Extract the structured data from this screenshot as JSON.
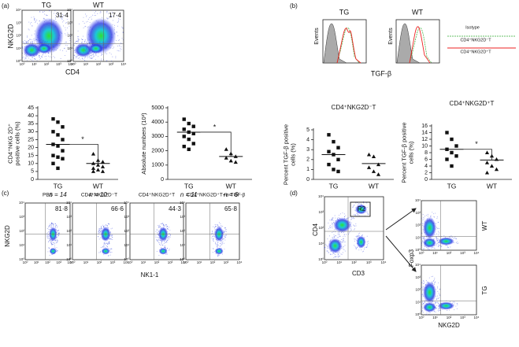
{
  "panels": [
    "(a)",
    "(b)",
    "(c)",
    "(d)"
  ],
  "flow_ticks": [
    "10⁰",
    "10¹",
    "10²",
    "10³",
    "10⁴"
  ],
  "a_flow": {
    "plots": [
      {
        "title": "TG",
        "value": "31·4"
      },
      {
        "title": "WT",
        "value": "17·4"
      }
    ],
    "ylabel": "NKG2D",
    "xlabel": "CD4"
  },
  "b_hist": {
    "plots": [
      "TG",
      "WT"
    ],
    "ylabel": "Events",
    "xlabel": "TGF-β",
    "legend": [
      "Isotype",
      "CD4⁺NKG2D⁻T",
      "CD4⁺NKG2D⁺T"
    ]
  },
  "c_flow": {
    "plots": [
      {
        "title": "PBS",
        "value": "81·8"
      },
      {
        "title": "CD4⁺NKG2D⁻T",
        "value": "66·6"
      },
      {
        "title": "CD4⁺NKG2D⁺T",
        "value": "44·3"
      },
      {
        "title": "CD4⁺NKG2D⁺T+α-TGF-β",
        "value": "65·8"
      }
    ],
    "ylabel": "NKG2D",
    "xlabel": "NK1-1"
  },
  "d_flow": {
    "gate": "R2",
    "ylabel": "CD4",
    "xlabel": "CD3",
    "right_ylabel": "Foxp3",
    "right_xlabel": "NKG2D",
    "sides": [
      "WT",
      "TG"
    ]
  },
  "chart_data": [
    {
      "type": "dot",
      "ylabel": [
        "CD4⁺NKG 2D⁺",
        "positive cells (%)"
      ],
      "categories": [
        "TG",
        "WT"
      ],
      "n_labels": [
        "n = 14",
        "n = 10"
      ],
      "values": [
        [
          38,
          36,
          33,
          30,
          28,
          25,
          22,
          21,
          18,
          15,
          14,
          13,
          10,
          7
        ],
        [
          16,
          12,
          11,
          10,
          9,
          8,
          7,
          6,
          5,
          5
        ]
      ],
      "means": [
        22,
        10
      ],
      "markers": [
        "square",
        "triangle"
      ],
      "significance": "*",
      "ylim": [
        0,
        45
      ],
      "yticks": [
        0,
        5,
        10,
        15,
        20,
        25,
        30,
        35,
        40,
        45
      ]
    },
    {
      "type": "dot",
      "ylabel": [
        "Absolute numbers (10³)"
      ],
      "categories": [
        "TG",
        "WT"
      ],
      "n_labels": [
        "n = 11",
        "n = 6"
      ],
      "values": [
        [
          4200,
          3900,
          3700,
          3500,
          3300,
          3200,
          3000,
          2800,
          2500,
          2300,
          2100
        ],
        [
          2100,
          1800,
          1600,
          1500,
          1300,
          1200
        ]
      ],
      "means": [
        3300,
        1600
      ],
      "markers": [
        "square",
        "triangle"
      ],
      "significance": "*",
      "ylim": [
        0,
        5000
      ],
      "yticks": [
        0,
        1000,
        2000,
        3000,
        4000,
        5000
      ]
    },
    {
      "type": "dot",
      "title": "CD4⁺NKG2D⁻T",
      "ylabel": [
        "Percent TGF-β positive",
        "cells (%)"
      ],
      "categories": [
        "TG",
        "WT"
      ],
      "values": [
        [
          4.5,
          3.8,
          3.2,
          2.8,
          2.5,
          2.0,
          1.5,
          1.0,
          0.8
        ],
        [
          2.5,
          2.3,
          1.5,
          1.2,
          0.8,
          0.5
        ]
      ],
      "means": [
        2.5,
        1.6
      ],
      "markers": [
        "square",
        "triangle"
      ],
      "ylim": [
        0,
        5
      ],
      "yticks": [
        0,
        1,
        2,
        3,
        4,
        5
      ]
    },
    {
      "type": "dot",
      "title": "CD4⁺NKG2D⁺T",
      "ylabel": [
        "Percent TGF-β positive",
        "cells (%)"
      ],
      "categories": [
        "TG",
        "WT"
      ],
      "values": [
        [
          14,
          12,
          10,
          9,
          8,
          7,
          6,
          4
        ],
        [
          8,
          7,
          6,
          5,
          4,
          3,
          2
        ]
      ],
      "means": [
        9,
        5.8
      ],
      "markers": [
        "square",
        "triangle"
      ],
      "significance": "*",
      "ylim": [
        0,
        16
      ],
      "yticks": [
        0,
        2,
        4,
        6,
        8,
        10,
        12,
        14,
        16
      ]
    }
  ]
}
